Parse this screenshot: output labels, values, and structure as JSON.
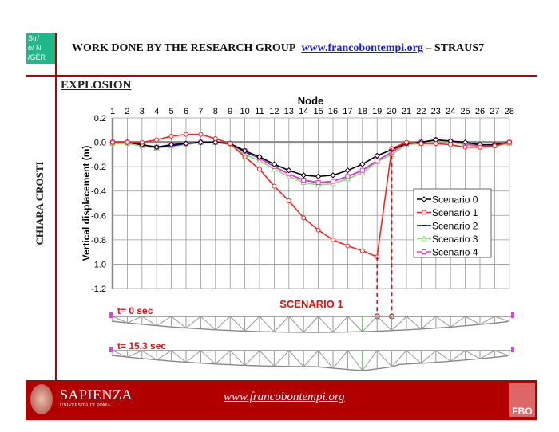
{
  "header": {
    "logo_text": [
      "Str/",
      "o/ N",
      "/GER"
    ],
    "title_prefix": "WORK DONE BY THE RESEARCH GROUP",
    "title_link": "www.francobontempi.org",
    "title_suffix": "– STRAUS7",
    "section": "EXPLOSION",
    "author": "CHIARA CROSTI"
  },
  "chart_data": {
    "type": "line",
    "xlabel": "Node",
    "ylabel": "Vertical displacement (m)",
    "x": [
      1,
      2,
      3,
      4,
      5,
      6,
      7,
      8,
      9,
      10,
      11,
      12,
      13,
      14,
      15,
      16,
      17,
      18,
      19,
      20,
      21,
      22,
      23,
      24,
      25,
      26,
      27,
      28
    ],
    "ylim": [
      -1.2,
      0.2
    ],
    "yticks": [
      "0.2",
      "0.0",
      "-0.2",
      "-0.4",
      "-0.6",
      "-0.8",
      "-1.0",
      "-1.2"
    ],
    "grid": true,
    "legend": "right",
    "series": [
      {
        "name": "Scenario 0",
        "color": "#000000",
        "marker": "diamond",
        "values": [
          0,
          0,
          -0.02,
          -0.04,
          -0.02,
          -0.01,
          0,
          0,
          -0.01,
          -0.07,
          -0.12,
          -0.18,
          -0.23,
          -0.27,
          -0.28,
          -0.27,
          -0.23,
          -0.18,
          -0.11,
          -0.06,
          -0.01,
          0,
          0.02,
          0.01,
          0,
          -0.02,
          -0.02,
          0
        ]
      },
      {
        "name": "Scenario 1",
        "color": "#ff2020",
        "marker": "circle",
        "values": [
          0,
          0,
          0,
          0.02,
          0.05,
          0.065,
          0.065,
          0.03,
          -0.01,
          -0.12,
          -0.22,
          -0.36,
          -0.48,
          -0.62,
          -0.72,
          -0.8,
          -0.85,
          -0.89,
          -0.94,
          -0.05,
          0,
          -0.01,
          -0.01,
          -0.02,
          -0.04,
          -0.04,
          -0.03,
          0
        ]
      },
      {
        "name": "Scenario 2",
        "color": "#0000cc",
        "marker": "dash",
        "values": [
          0,
          0,
          -0.02,
          -0.04,
          -0.03,
          -0.01,
          0,
          0,
          -0.01,
          -0.08,
          -0.13,
          -0.2,
          -0.26,
          -0.31,
          -0.33,
          -0.32,
          -0.28,
          -0.23,
          -0.15,
          -0.08,
          -0.01,
          0,
          0.02,
          0.01,
          -0.01,
          -0.03,
          -0.02,
          0
        ]
      },
      {
        "name": "Scenario 3",
        "color": "#88dd77",
        "marker": "triangle",
        "values": [
          -0.01,
          -0.01,
          -0.03,
          -0.05,
          -0.03,
          -0.02,
          0,
          0,
          -0.02,
          -0.1,
          -0.15,
          -0.22,
          -0.28,
          -0.33,
          -0.35,
          -0.34,
          -0.3,
          -0.25,
          -0.16,
          -0.1,
          -0.02,
          -0.01,
          0.01,
          0,
          -0.02,
          -0.04,
          -0.03,
          -0.01
        ]
      },
      {
        "name": "Scenario 4",
        "color": "#ee33cc",
        "marker": "square",
        "values": [
          0,
          0,
          -0.02,
          -0.04,
          -0.02,
          -0.01,
          0,
          0,
          -0.01,
          -0.07,
          -0.13,
          -0.2,
          -0.26,
          -0.31,
          -0.33,
          -0.32,
          -0.28,
          -0.23,
          -0.15,
          -0.08,
          -0.01,
          0,
          0.02,
          0.01,
          -0.01,
          -0.03,
          -0.02,
          0
        ]
      }
    ],
    "annotations": {
      "scenario_label": "SCENARIO 1",
      "failed_nodes": [
        19,
        20
      ],
      "t0_label": "t= 0 sec",
      "t1_label": "t= 15.3 sec"
    }
  },
  "footer": {
    "university": "SAPIENZA",
    "university_sub": "UNIVERSITÀ DI ROMA",
    "url": "www.francobontempi.org",
    "logo_text": "FBO"
  }
}
